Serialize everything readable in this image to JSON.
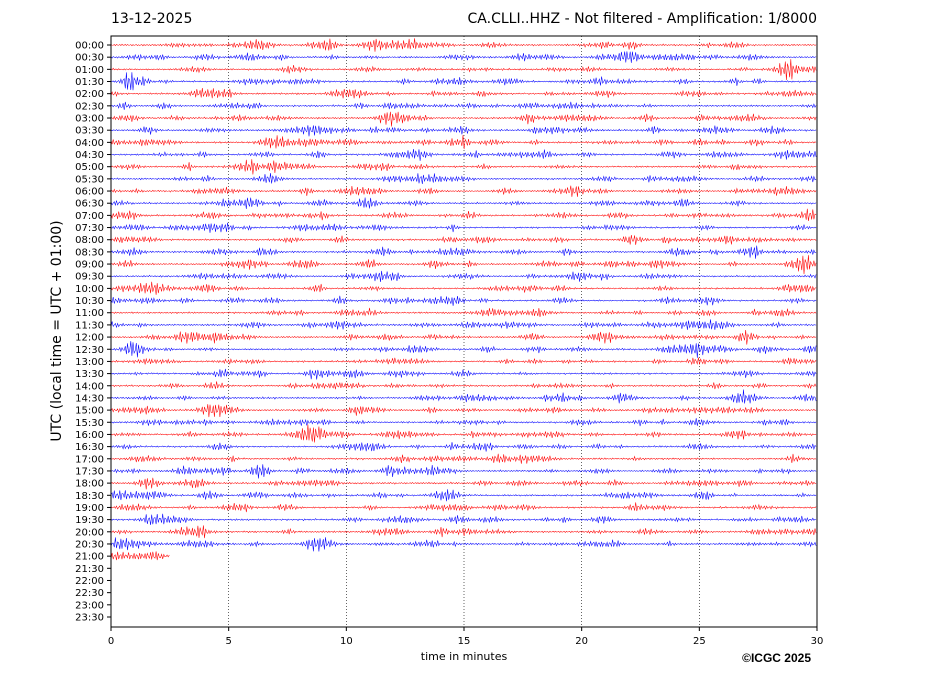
{
  "header": {
    "date": "13-12-2025",
    "title": "CA.CLLI..HHZ - Not filtered - Amplification: 1/8000"
  },
  "footer": {
    "copyright": "©ICGC 2025"
  },
  "colors": {
    "even_trace": "#ff0000",
    "odd_trace": "#0000ff",
    "axes": "#000000",
    "grid": "#000000"
  },
  "chart_data": {
    "type": "line",
    "title": "CA.CLLI..HHZ - Not filtered - Amplification: 1/8000",
    "xlabel": "time in minutes",
    "ylabel": "UTC (local time = UTC + 01:00)",
    "xlim": [
      0,
      30
    ],
    "x_ticks": [
      "0",
      "5",
      "10",
      "15",
      "20",
      "25",
      "30"
    ],
    "x_tick_values": [
      0,
      5,
      10,
      15,
      20,
      25,
      30
    ],
    "grid": "vertical dotted lines at each x tick",
    "rows": [
      "00:00",
      "00:30",
      "01:00",
      "01:30",
      "02:00",
      "02:30",
      "03:00",
      "03:30",
      "04:00",
      "04:30",
      "05:00",
      "05:30",
      "06:00",
      "06:30",
      "07:00",
      "07:30",
      "08:00",
      "08:30",
      "09:00",
      "09:30",
      "10:00",
      "10:30",
      "11:00",
      "11:30",
      "12:00",
      "12:30",
      "13:00",
      "13:30",
      "14:00",
      "14:30",
      "15:00",
      "15:30",
      "16:00",
      "16:30",
      "17:00",
      "17:30",
      "18:00",
      "18:30",
      "19:00",
      "19:30",
      "20:00",
      "20:30",
      "21:00",
      "21:30",
      "22:00",
      "22:30",
      "23:00",
      "23:30"
    ],
    "row_trace_end_minutes": [
      30,
      30,
      30,
      30,
      30,
      30,
      30,
      30,
      30,
      30,
      30,
      30,
      30,
      30,
      30,
      30,
      30,
      30,
      30,
      30,
      30,
      30,
      30,
      30,
      30,
      30,
      30,
      30,
      30,
      30,
      30,
      30,
      30,
      30,
      30,
      30,
      30,
      30,
      30,
      30,
      30,
      30,
      2.5,
      0,
      0,
      0,
      0,
      0
    ],
    "row_colors": "alternating red (even rows) and blue (odd rows)"
  }
}
